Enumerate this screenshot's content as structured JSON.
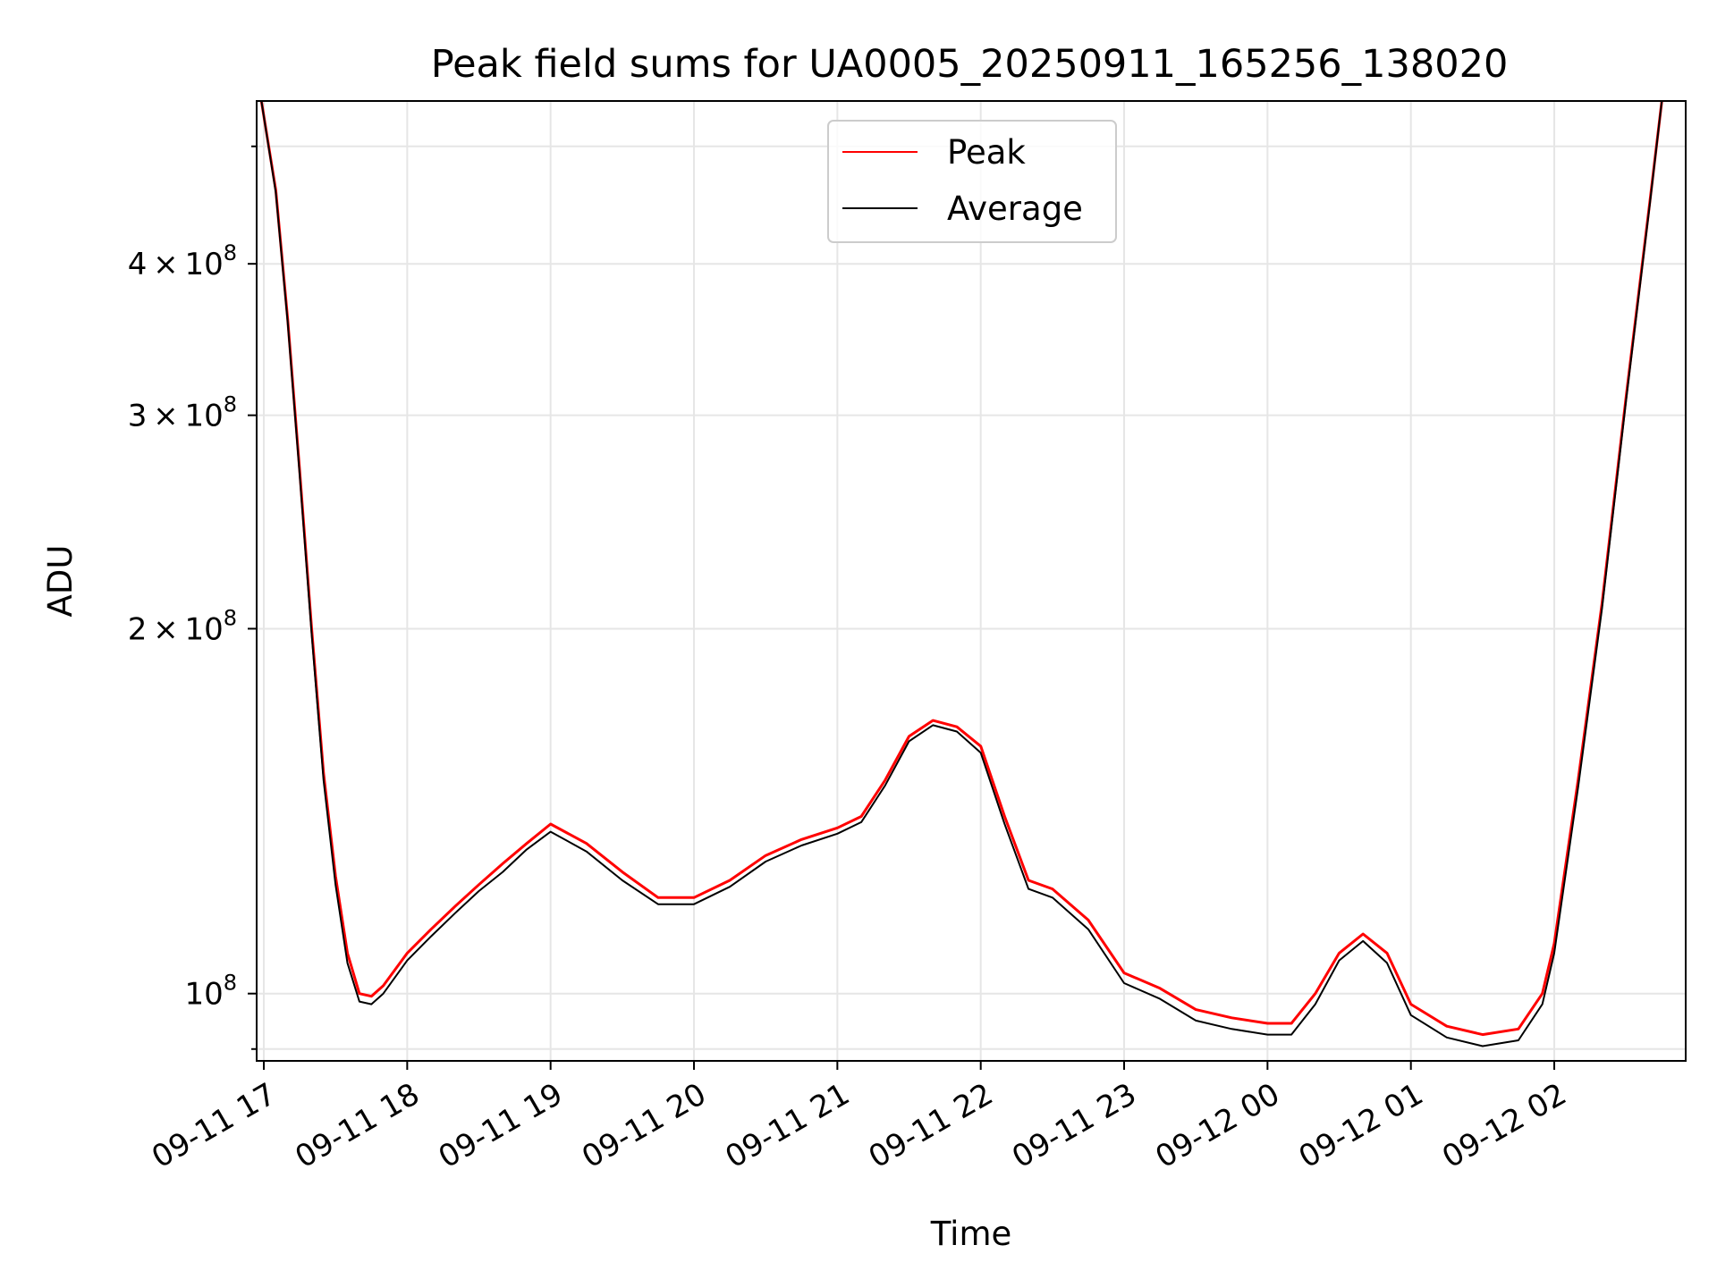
{
  "chart_data": {
    "type": "line",
    "title": "Peak field sums for UA0005_20250911_165256_138020",
    "xlabel": "Time",
    "ylabel": "ADU",
    "y_scale": "log",
    "ylim": [
      88000000,
      545000000
    ],
    "xlim": [
      "2025-09-11 16:57",
      "2025-09-12 02:55"
    ],
    "grid": true,
    "legend_position": "top-center",
    "x_tick_labels": [
      "09-11 17",
      "09-11 18",
      "09-11 19",
      "09-11 20",
      "09-11 21",
      "09-11 22",
      "09-11 23",
      "09-12 00",
      "09-12 01",
      "09-12 02"
    ],
    "x_ticks": [
      "2025-09-11 17:00",
      "2025-09-11 18:00",
      "2025-09-11 19:00",
      "2025-09-11 20:00",
      "2025-09-11 21:00",
      "2025-09-11 22:00",
      "2025-09-11 23:00",
      "2025-09-12 00:00",
      "2025-09-12 01:00",
      "2025-09-12 02:00"
    ],
    "y_ticks": [
      {
        "value": 100000000,
        "mantissa": "",
        "exponent": "8"
      },
      {
        "value": 200000000,
        "mantissa": "2",
        "exponent": "8"
      },
      {
        "value": 300000000,
        "mantissa": "3",
        "exponent": "8"
      },
      {
        "value": 400000000,
        "mantissa": "4",
        "exponent": "8"
      }
    ],
    "series": [
      {
        "name": "Peak",
        "color": "#ff0000",
        "x": [
          "2025-09-11 16:59",
          "2025-09-11 17:05",
          "2025-09-11 17:10",
          "2025-09-11 17:15",
          "2025-09-11 17:20",
          "2025-09-11 17:25",
          "2025-09-11 17:30",
          "2025-09-11 17:35",
          "2025-09-11 17:40",
          "2025-09-11 17:45",
          "2025-09-11 17:50",
          "2025-09-11 18:00",
          "2025-09-11 18:10",
          "2025-09-11 18:20",
          "2025-09-11 18:30",
          "2025-09-11 18:40",
          "2025-09-11 18:50",
          "2025-09-11 19:00",
          "2025-09-11 19:15",
          "2025-09-11 19:30",
          "2025-09-11 19:45",
          "2025-09-11 20:00",
          "2025-09-11 20:15",
          "2025-09-11 20:30",
          "2025-09-11 20:45",
          "2025-09-11 21:00",
          "2025-09-11 21:10",
          "2025-09-11 21:20",
          "2025-09-11 21:30",
          "2025-09-11 21:40",
          "2025-09-11 21:50",
          "2025-09-11 22:00",
          "2025-09-11 22:10",
          "2025-09-11 22:20",
          "2025-09-11 22:30",
          "2025-09-11 22:45",
          "2025-09-11 23:00",
          "2025-09-11 23:15",
          "2025-09-11 23:30",
          "2025-09-11 23:45",
          "2025-09-12 00:00",
          "2025-09-12 00:10",
          "2025-09-12 00:20",
          "2025-09-12 00:30",
          "2025-09-12 00:40",
          "2025-09-12 00:50",
          "2025-09-12 01:00",
          "2025-09-12 01:15",
          "2025-09-12 01:30",
          "2025-09-12 01:45",
          "2025-09-12 01:55",
          "2025-09-12 02:00",
          "2025-09-12 02:10",
          "2025-09-12 02:20",
          "2025-09-12 02:30",
          "2025-09-12 02:40",
          "2025-09-12 02:45"
        ],
        "values": [
          545000000,
          460000000,
          360000000,
          270000000,
          200000000,
          152000000,
          125000000,
          108000000,
          100000000,
          99500000,
          101500000,
          108000000,
          113000000,
          118000000,
          123000000,
          128000000,
          133000000,
          138000000,
          133000000,
          126000000,
          120000000,
          120000000,
          124000000,
          130000000,
          134000000,
          137000000,
          140000000,
          150000000,
          163000000,
          168000000,
          166000000,
          160000000,
          140000000,
          124000000,
          122000000,
          115000000,
          104000000,
          101000000,
          97000000,
          95500000,
          94500000,
          94500000,
          100000000,
          108000000,
          112000000,
          108000000,
          98000000,
          94000000,
          92500000,
          93500000,
          100000000,
          110000000,
          150000000,
          210000000,
          310000000,
          450000000,
          545000000
        ]
      },
      {
        "name": "Average",
        "color": "#000000",
        "x": [
          "2025-09-11 16:59",
          "2025-09-11 17:05",
          "2025-09-11 17:10",
          "2025-09-11 17:15",
          "2025-09-11 17:20",
          "2025-09-11 17:25",
          "2025-09-11 17:30",
          "2025-09-11 17:35",
          "2025-09-11 17:40",
          "2025-09-11 17:45",
          "2025-09-11 17:50",
          "2025-09-11 18:00",
          "2025-09-11 18:10",
          "2025-09-11 18:20",
          "2025-09-11 18:30",
          "2025-09-11 18:40",
          "2025-09-11 18:50",
          "2025-09-11 19:00",
          "2025-09-11 19:15",
          "2025-09-11 19:30",
          "2025-09-11 19:45",
          "2025-09-11 20:00",
          "2025-09-11 20:15",
          "2025-09-11 20:30",
          "2025-09-11 20:45",
          "2025-09-11 21:00",
          "2025-09-11 21:10",
          "2025-09-11 21:20",
          "2025-09-11 21:30",
          "2025-09-11 21:40",
          "2025-09-11 21:50",
          "2025-09-11 22:00",
          "2025-09-11 22:10",
          "2025-09-11 22:20",
          "2025-09-11 22:30",
          "2025-09-11 22:45",
          "2025-09-11 23:00",
          "2025-09-11 23:15",
          "2025-09-11 23:30",
          "2025-09-11 23:45",
          "2025-09-12 00:00",
          "2025-09-12 00:10",
          "2025-09-12 00:20",
          "2025-09-12 00:30",
          "2025-09-12 00:40",
          "2025-09-12 00:50",
          "2025-09-12 01:00",
          "2025-09-12 01:15",
          "2025-09-12 01:30",
          "2025-09-12 01:45",
          "2025-09-12 01:55",
          "2025-09-12 02:00",
          "2025-09-12 02:10",
          "2025-09-12 02:20",
          "2025-09-12 02:30",
          "2025-09-12 02:40",
          "2025-09-12 02:45"
        ],
        "values": [
          545000000,
          458000000,
          358000000,
          268000000,
          198000000,
          150000000,
          123000000,
          106000000,
          98500000,
          98000000,
          100000000,
          106500000,
          111500000,
          116500000,
          121500000,
          126000000,
          131500000,
          136000000,
          131000000,
          124000000,
          118500000,
          118500000,
          122500000,
          128500000,
          132500000,
          135500000,
          138500000,
          148500000,
          161500000,
          166500000,
          164500000,
          158000000,
          138000000,
          122000000,
          120000000,
          113000000,
          102000000,
          99000000,
          95000000,
          93500000,
          92500000,
          92500000,
          98000000,
          106500000,
          110500000,
          106000000,
          96000000,
          92000000,
          90500000,
          91500000,
          98000000,
          108000000,
          148000000,
          208000000,
          308000000,
          448000000,
          545000000
        ]
      }
    ]
  }
}
